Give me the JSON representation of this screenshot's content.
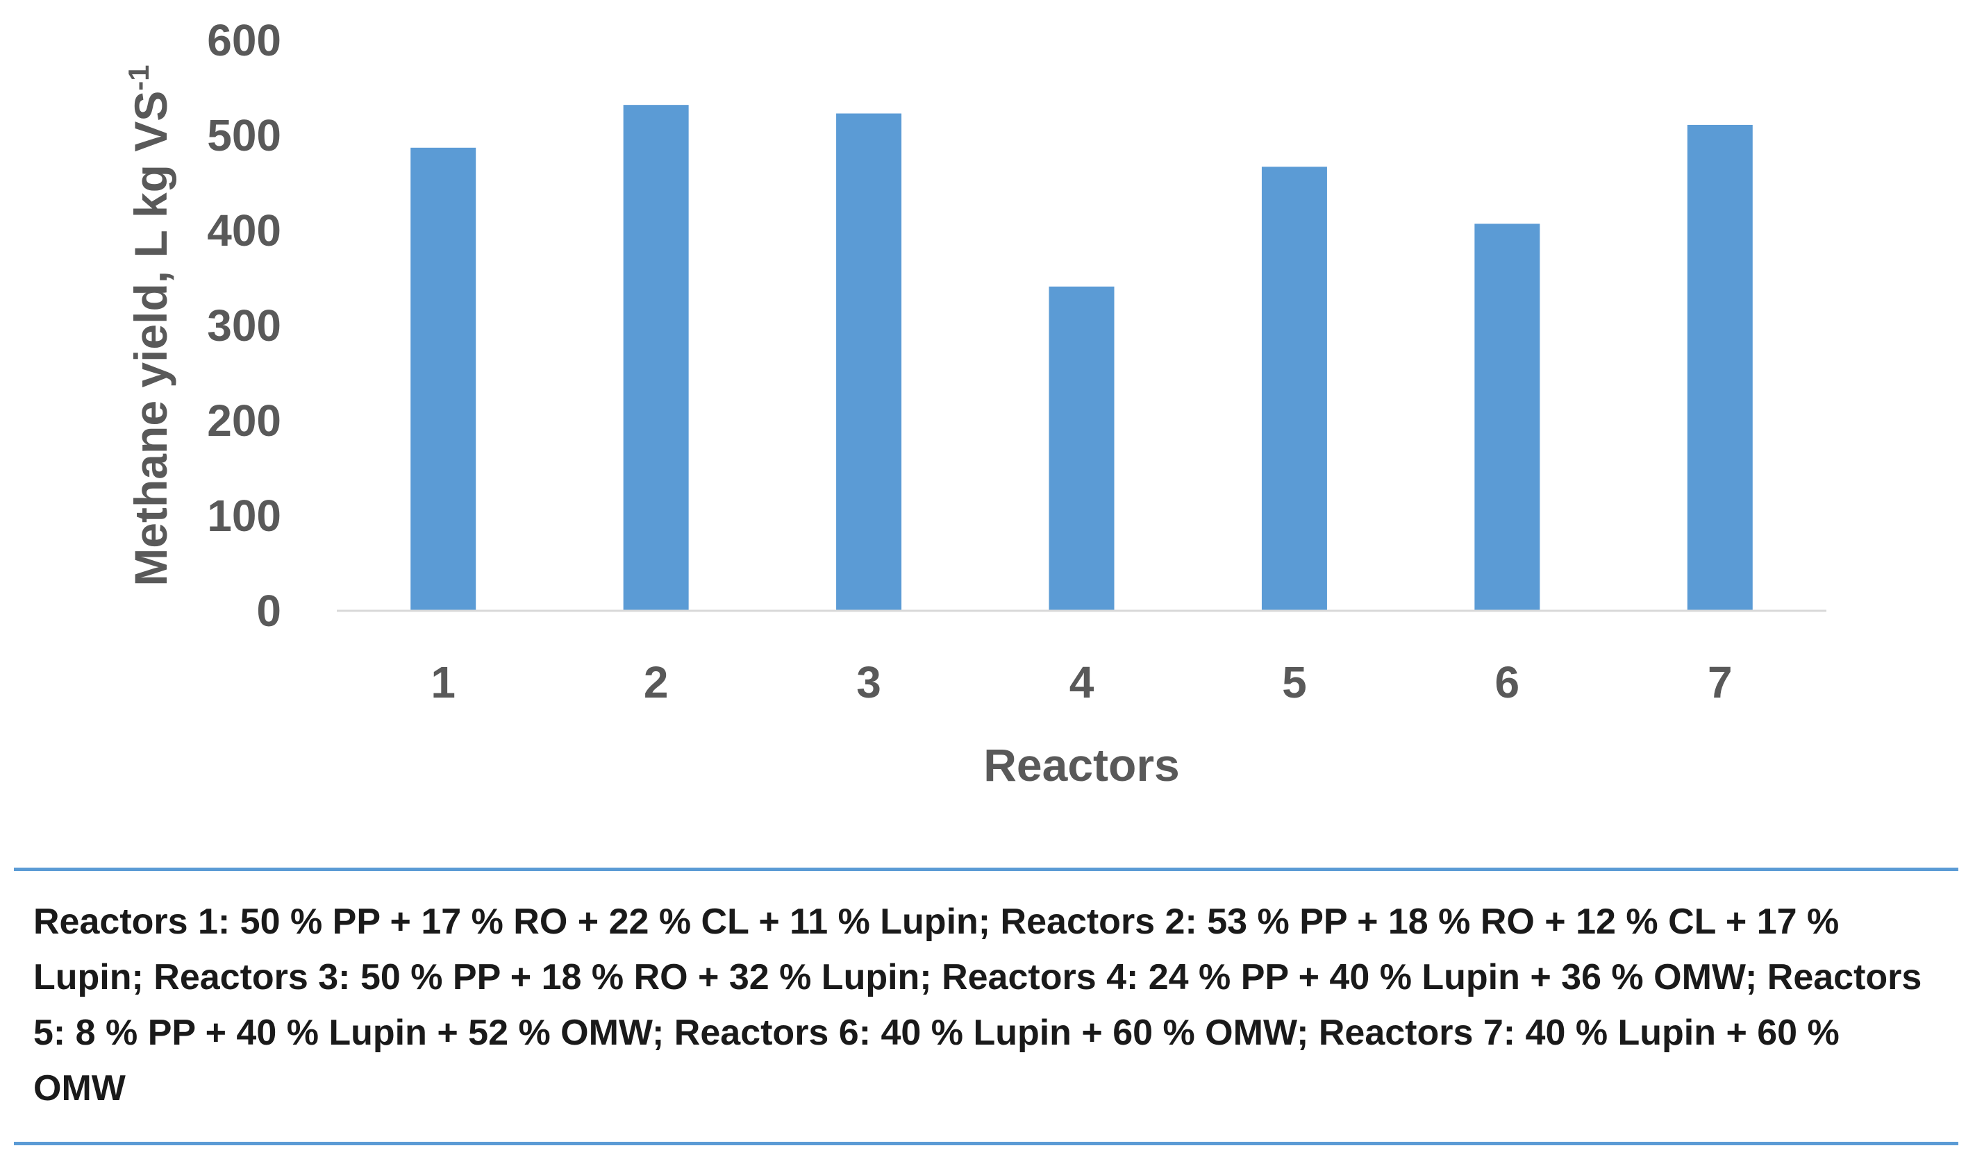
{
  "chart_data": {
    "type": "bar",
    "categories": [
      "1",
      "2",
      "3",
      "4",
      "5",
      "6",
      "7"
    ],
    "values": [
      487,
      532,
      523,
      341,
      467,
      407,
      511
    ],
    "xlabel": "Reactors",
    "ylabel": "Methane yield, L kg VS",
    "ylabel_superscript": "-1",
    "ylim": [
      0,
      600
    ],
    "yticks": [
      "0",
      "100",
      "200",
      "300",
      "400",
      "500",
      "600"
    ],
    "grid": false,
    "bar_color": "#5B9BD5"
  },
  "note": "Reactors 1: 50 % PP + 17 % RO + 22 % CL + 11 % Lupin; Reactors 2: 53 % PP + 18 % RO + 12 % CL + 17 % Lupin; Reactors 3: 50 % PP + 18 % RO + 32 % Lupin; Reactors 4: 24 % PP + 40 % Lupin + 36 % OMW; Reactors 5: 8 % PP + 40 % Lupin + 52 % OMW; Reactors 6: 40 % Lupin + 60 % OMW; Reactors 7: 40 % Lupin + 60 % OMW"
}
